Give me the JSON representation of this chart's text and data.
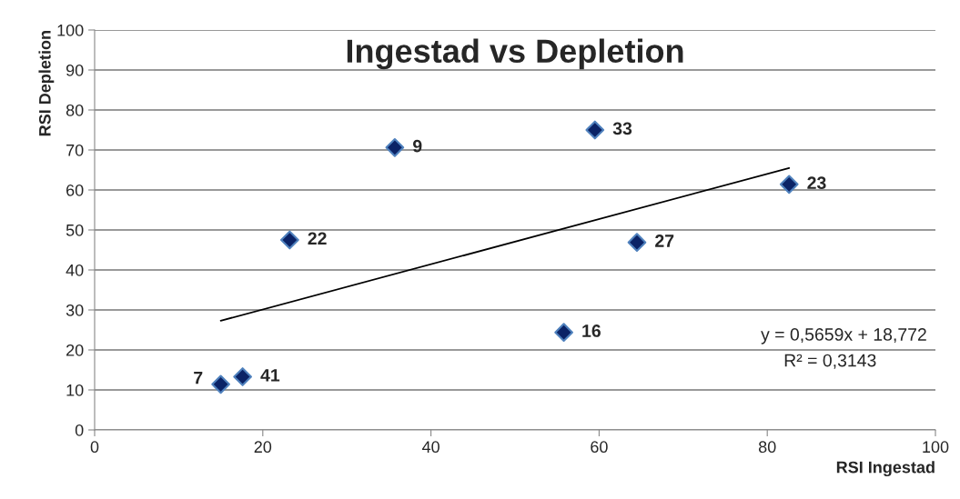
{
  "chart_data": {
    "type": "scatter",
    "title": "Ingestad vs Depletion",
    "xlabel": "RSI Ingestad",
    "ylabel": "RSI Depletion",
    "series": [
      {
        "color": "#0b2366",
        "x": [
          15.0,
          17.6,
          23.2,
          35.7,
          55.8,
          59.5,
          64.5,
          82.6
        ],
        "values": [
          11.4,
          13.3,
          47.5,
          70.6,
          24.4,
          75.0,
          46.9,
          61.4
        ],
        "marker": "diamond"
      },
      {
        "type": "line",
        "color": "#000000",
        "x": [
          15.0,
          82.6
        ],
        "values": [
          27.3,
          65.5
        ],
        "marker": "none",
        "line_style": "solid"
      }
    ],
    "annotations": [
      "y = 0,5659x + 18,772",
      "R² = 0,3143",
      {
        "text": "7",
        "x": 15.0,
        "y": 11.4
      },
      {
        "text": "41",
        "x": 17.6,
        "y": 13.3
      },
      {
        "text": "22",
        "x": 23.2,
        "y": 47.5
      },
      {
        "text": "9",
        "x": 35.7,
        "y": 70.6
      },
      {
        "text": "16",
        "x": 55.8,
        "y": 24.4
      },
      {
        "text": "33",
        "x": 59.5,
        "y": 75.0
      },
      {
        "text": "27",
        "x": 64.5,
        "y": 46.9
      },
      {
        "text": "23",
        "x": 82.6,
        "y": 61.4
      }
    ],
    "xlim": [
      0,
      100
    ],
    "xticks": [
      0,
      20,
      40,
      60,
      80,
      100
    ],
    "ylim": [
      0,
      100
    ],
    "yticks": [
      0,
      10,
      20,
      30,
      40,
      50,
      60,
      70,
      80,
      90,
      100
    ],
    "grid": "y",
    "legend": false
  }
}
